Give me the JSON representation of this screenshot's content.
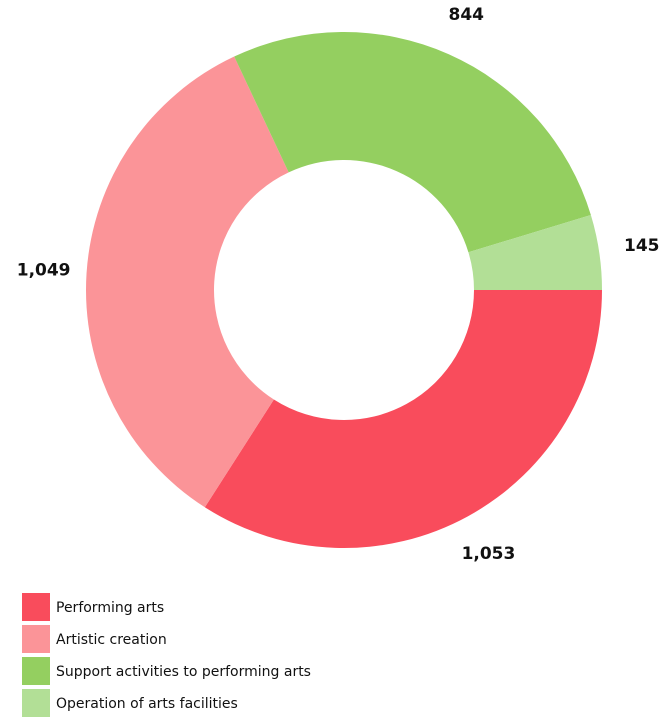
{
  "chart_data": {
    "type": "pie",
    "donut": true,
    "categories": [
      "Performing arts",
      "Artistic creation",
      "Support activities to performing arts",
      "Operation of arts facilities"
    ],
    "values": [
      1053,
      1049,
      844,
      145
    ],
    "value_labels": [
      "1,053",
      "1,049",
      "844",
      "145"
    ],
    "colors": [
      "#f94c5c",
      "#fb9498",
      "#94cf60",
      "#b2df96"
    ],
    "legend": "bottom-left"
  }
}
